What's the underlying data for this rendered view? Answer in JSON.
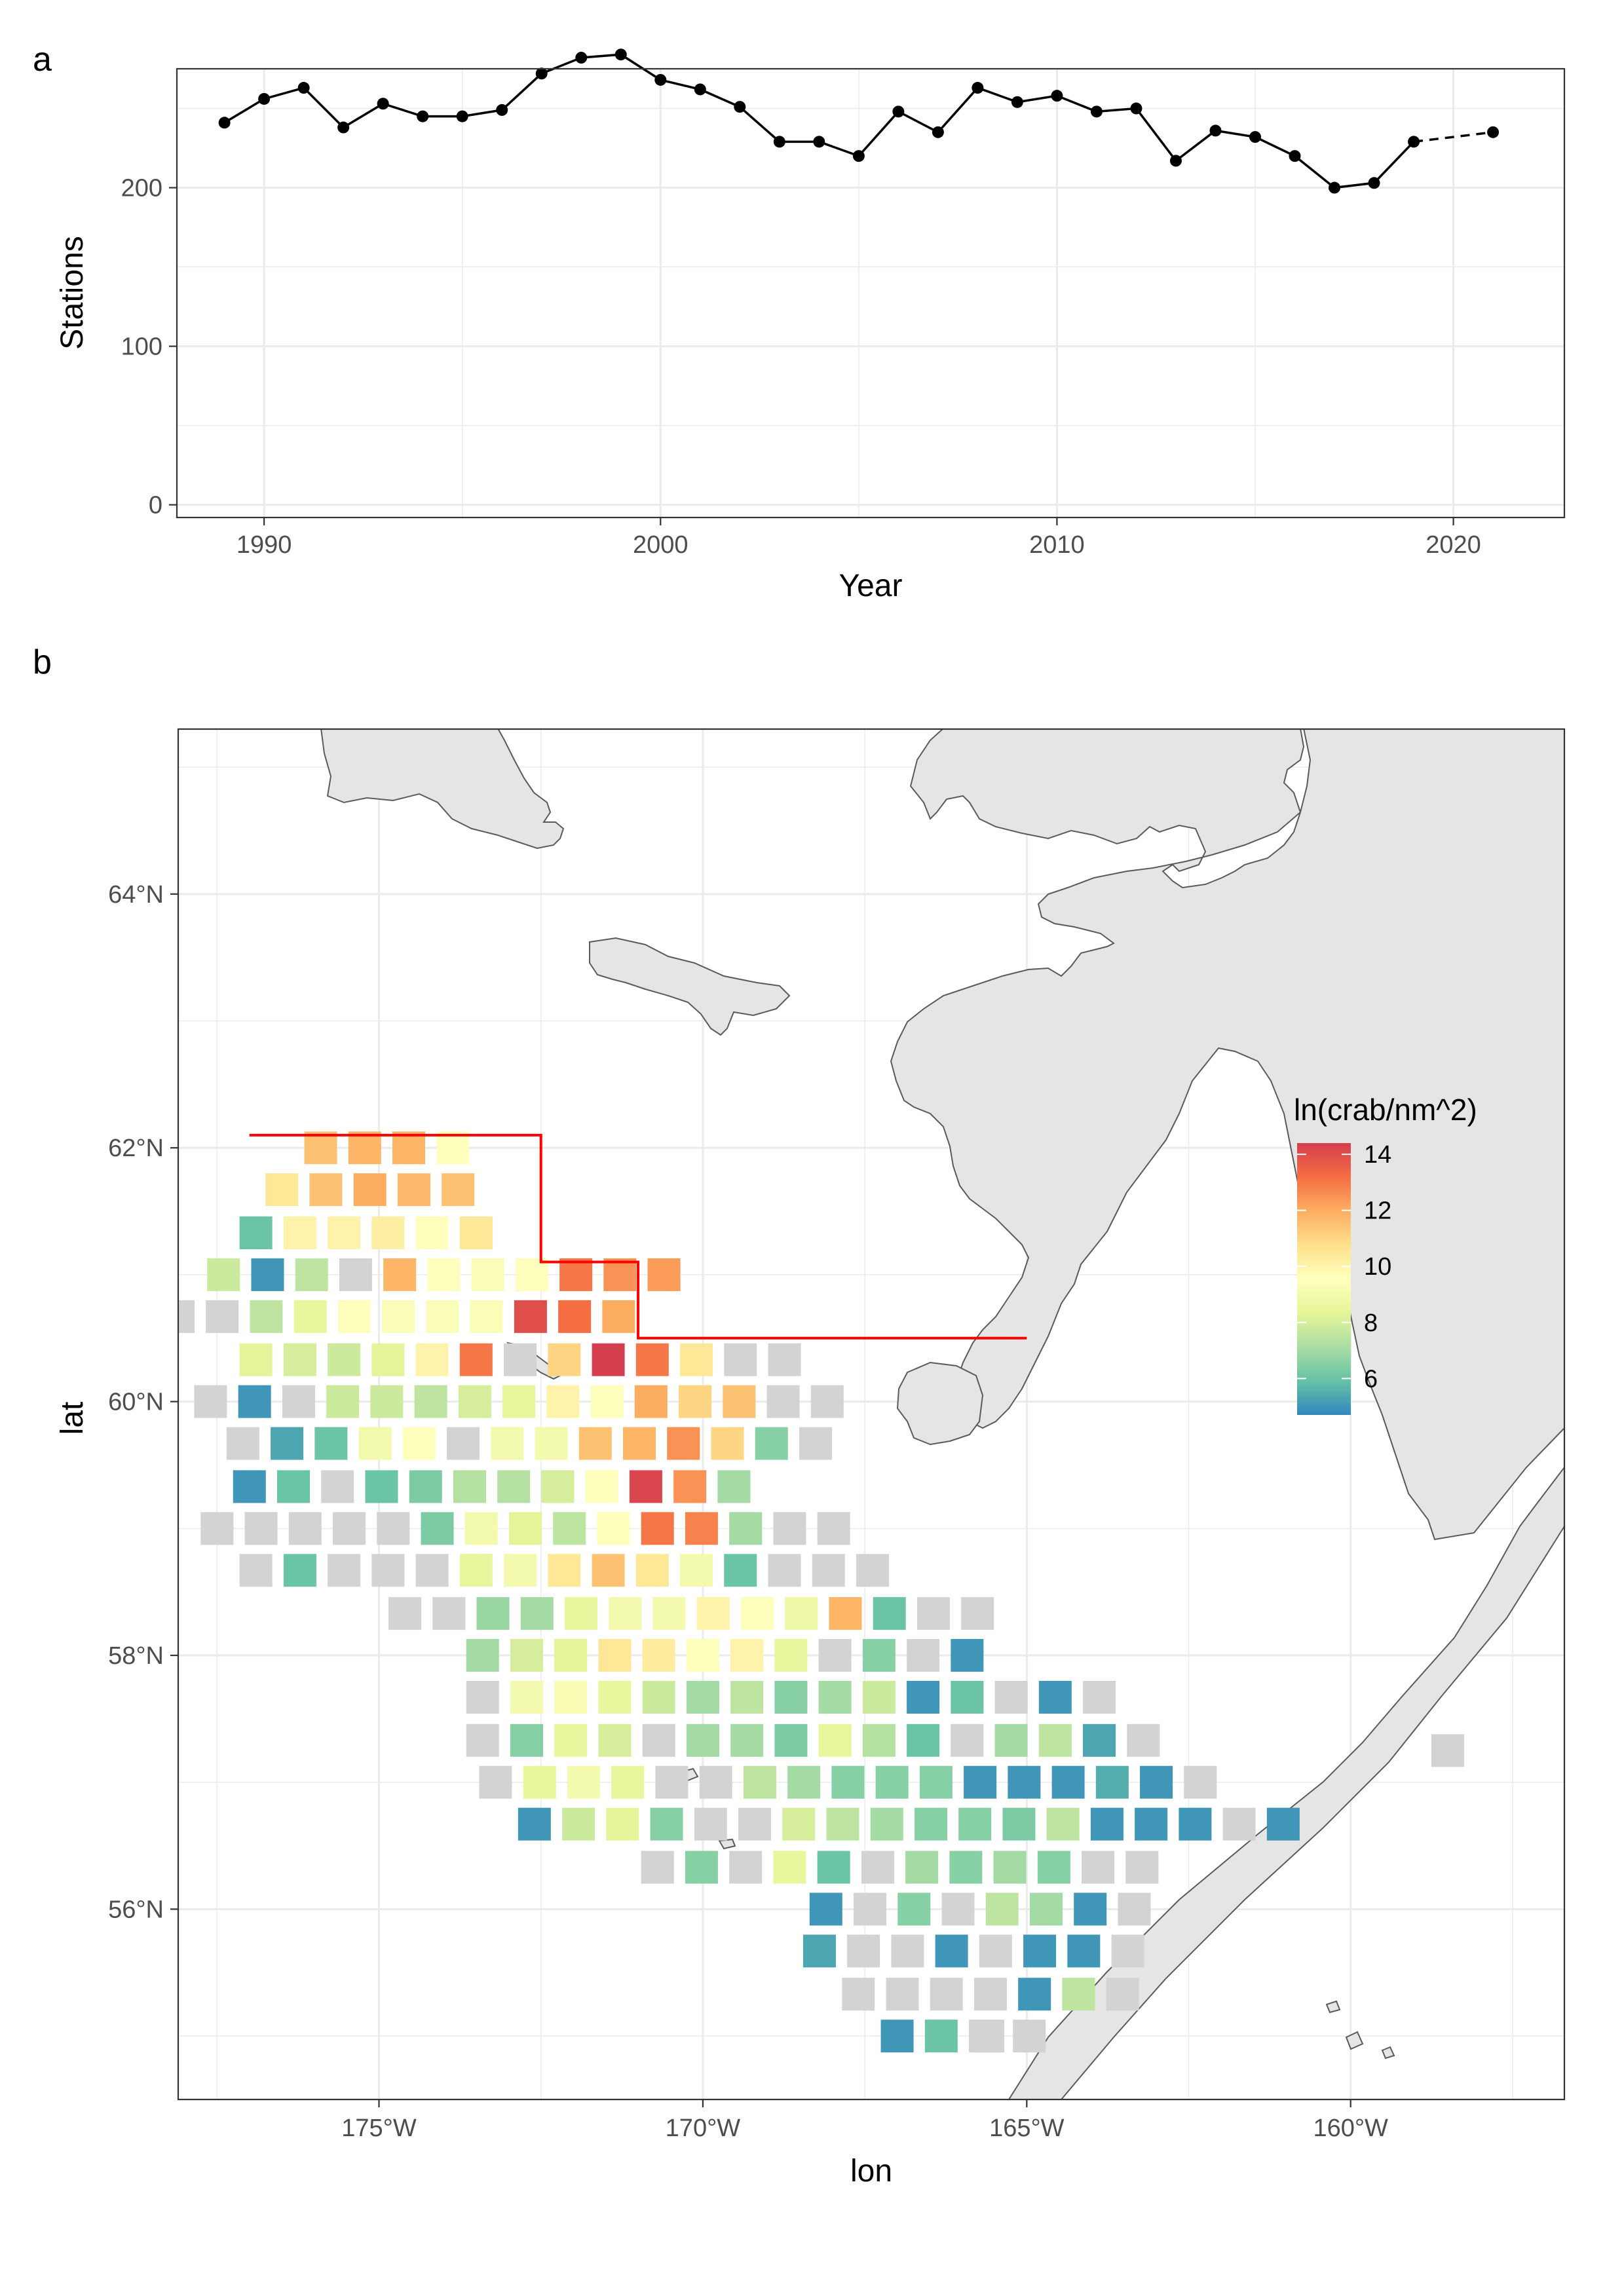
{
  "panel_a": {
    "letter": "a",
    "chart_data": {
      "type": "line",
      "xlabel": "Year",
      "ylabel": "Stations",
      "xlim": [
        1987.8,
        2022.8
      ],
      "ylim": [
        -8,
        275
      ],
      "x_ticks": [
        1990,
        2000,
        2010,
        2020
      ],
      "x_tick_labels": [
        "1990",
        "2000",
        "2010",
        "2020"
      ],
      "y_ticks": [
        0,
        100,
        200
      ],
      "y_tick_labels": [
        "0",
        "100",
        "200"
      ],
      "grid": true,
      "series": [
        {
          "line_style": "solid",
          "x": [
            1989,
            1990,
            1991,
            1992,
            1993,
            1994,
            1995,
            1996,
            1997,
            1998,
            1999,
            2000,
            2001,
            2002,
            2003,
            2004,
            2005,
            2006,
            2007,
            2008,
            2009,
            2010,
            2011,
            2012,
            2013,
            2014,
            2015,
            2016,
            2017,
            2018,
            2019
          ],
          "y": [
            241,
            256,
            263,
            238,
            253,
            245,
            245,
            249,
            272,
            282,
            284,
            268,
            262,
            251,
            229,
            229,
            220,
            248,
            235,
            263,
            254,
            258,
            248,
            250,
            217,
            236,
            232,
            220,
            200,
            203,
            229
          ]
        },
        {
          "line_style": "dashed",
          "x": [
            2019,
            2021
          ],
          "y": [
            229,
            235
          ]
        }
      ]
    }
  },
  "panel_b": {
    "letter": "b",
    "chart_data": {
      "type": "heatmap",
      "xlabel": "lon",
      "ylabel": "lat",
      "xlim": [
        -178.1,
        -156.7
      ],
      "ylim": [
        54.5,
        65.3
      ],
      "x_ticks": [
        -175,
        -170,
        -165,
        -160
      ],
      "x_tick_labels": [
        "175°W",
        "170°W",
        "165°W",
        "160°W"
      ],
      "y_ticks": [
        56,
        58,
        60,
        62,
        64
      ],
      "y_tick_labels": [
        "56°N",
        "58°N",
        "60°N",
        "62°N",
        "64°N"
      ],
      "grid": true,
      "legend": {
        "title": "ln(crab/nm^2)",
        "placement": "right-inside",
        "min": 4.7,
        "max": 14.4,
        "ticks": [
          6,
          8,
          10,
          12,
          14
        ],
        "tick_labels": [
          "6",
          "8",
          "10",
          "12",
          "14"
        ]
      },
      "no_catch_color": "#d3d3d3",
      "land_color": "#e5e5e5",
      "boundary_line": {
        "color": "#ff0000",
        "points": [
          [
            -177,
            62.1
          ],
          [
            -172.5,
            62.1
          ],
          [
            -172.5,
            61.1
          ],
          [
            -171,
            61.1
          ],
          [
            -171,
            60.5
          ],
          [
            -165,
            60.5
          ]
        ]
      },
      "rows": [
        {
          "lat": 62.0,
          "lon0": -175.9,
          "values": [
            11.5,
            11.8,
            11.8,
            9.5
          ]
        },
        {
          "lat": 61.67,
          "lon0": -176.5,
          "values": [
            10.5,
            11.5,
            12.0,
            11.7,
            11.5
          ]
        },
        {
          "lat": 61.33,
          "lon0": -176.9,
          "values": [
            6.0,
            10.0,
            10.0,
            10.2,
            9.5,
            10.5
          ]
        },
        {
          "lat": 61.0,
          "lon0": -177.4,
          "values": [
            7.8,
            5.0,
            7.5,
            null,
            11.8,
            9.5,
            9.3,
            9.5,
            13.0,
            12.5,
            12.3
          ]
        },
        {
          "lat": 60.67,
          "lon0": -178.1,
          "values": [
            null,
            null,
            7.5,
            8.5,
            9.5,
            9.3,
            9.3,
            9.3,
            14.0,
            13.2,
            12.0
          ]
        },
        {
          "lat": 60.33,
          "lon0": -176.9,
          "values": [
            8.3,
            8.0,
            7.8,
            8.3,
            10.0,
            13.0,
            null,
            11.0,
            14.5,
            13.0,
            10.5,
            null,
            null
          ]
        },
        {
          "lat": 60.0,
          "lon0": -177.6,
          "values": [
            null,
            5.0,
            null,
            7.8,
            7.8,
            7.5,
            8.0,
            8.5,
            10.0,
            9.5,
            12.0,
            11.0,
            11.5,
            null,
            null
          ]
        },
        {
          "lat": 59.67,
          "lon0": -177.1,
          "values": [
            null,
            5.3,
            6.0,
            9.0,
            9.5,
            null,
            9.0,
            9.0,
            11.5,
            11.8,
            12.5,
            11.0,
            6.5,
            null
          ]
        },
        {
          "lat": 59.33,
          "lon0": -177.0,
          "values": [
            5.0,
            6.0,
            null,
            6.0,
            6.3,
            7.3,
            7.3,
            8.0,
            9.5,
            14.2,
            12.5,
            7.0
          ]
        },
        {
          "lat": 59.0,
          "lon0": -177.5,
          "values": [
            null,
            null,
            null,
            null,
            null,
            6.3,
            9.0,
            8.3,
            7.5,
            9.5,
            13.0,
            12.8,
            7.0,
            null,
            null
          ]
        },
        {
          "lat": 58.67,
          "lon0": -176.9,
          "values": [
            null,
            6.0,
            null,
            null,
            null,
            8.5,
            9.0,
            10.5,
            11.5,
            10.5,
            9.0,
            6.0,
            null,
            null,
            null
          ]
        },
        {
          "lat": 58.33,
          "lon0": -174.6,
          "values": [
            null,
            null,
            6.8,
            7.0,
            8.5,
            9.0,
            9.0,
            10.0,
            9.5,
            8.8,
            11.8,
            6.0,
            null,
            null
          ]
        },
        {
          "lat": 58.0,
          "lon0": -173.4,
          "values": [
            7.0,
            8.0,
            8.3,
            10.5,
            10.3,
            9.5,
            10.0,
            8.5,
            null,
            6.5,
            null,
            5.0
          ]
        },
        {
          "lat": 57.67,
          "lon0": -173.4,
          "values": [
            null,
            9.0,
            9.2,
            8.5,
            7.8,
            7.0,
            7.5,
            6.5,
            7.0,
            7.8,
            5.0,
            6.0,
            null,
            5.0,
            null
          ]
        },
        {
          "lat": 57.33,
          "lon0": -173.4,
          "values": [
            null,
            6.5,
            8.5,
            8.0,
            null,
            7.0,
            7.0,
            6.3,
            8.5,
            7.3,
            6.0,
            null,
            7.0,
            7.5,
            5.3,
            null
          ]
        },
        {
          "lat": 57.0,
          "lon0": -173.2,
          "values": [
            null,
            8.5,
            9.0,
            8.5,
            null,
            null,
            7.5,
            7.0,
            6.5,
            6.5,
            6.5,
            5.0,
            5.0,
            5.0,
            5.5,
            5.0,
            null
          ]
        },
        {
          "lat": 56.67,
          "lon0": -172.6,
          "values": [
            5.0,
            7.8,
            8.3,
            6.5,
            null,
            null,
            8.0,
            7.5,
            7.0,
            6.5,
            6.5,
            6.3,
            7.5,
            5.0,
            5.0,
            5.0,
            null,
            5.0
          ]
        },
        {
          "lat": 56.33,
          "lon0": -170.7,
          "values": [
            null,
            6.5,
            null,
            8.5,
            6.0,
            null,
            7.0,
            6.5,
            7.0,
            6.5,
            null,
            null
          ]
        },
        {
          "lat": 56.0,
          "lon0": -168.1,
          "values": [
            5.0,
            null,
            6.5,
            null,
            7.5,
            7.0,
            5.0,
            null
          ]
        },
        {
          "lat": 55.67,
          "lon0": -168.2,
          "values": [
            5.3,
            null,
            null,
            5.0,
            null,
            5.0,
            5.0,
            null
          ]
        },
        {
          "lat": 55.33,
          "lon0": -167.6,
          "values": [
            null,
            null,
            null,
            null,
            5.0,
            7.5,
            null
          ]
        },
        {
          "lat": 55.0,
          "lon0": -167.0,
          "values": [
            5.0,
            6.0,
            null,
            null
          ]
        }
      ],
      "extra_cells": [
        {
          "lat": 57.25,
          "lon": -158.5,
          "value": null
        },
        {
          "lat": 55.0,
          "lon": -165.6,
          "value": null
        }
      ]
    }
  }
}
